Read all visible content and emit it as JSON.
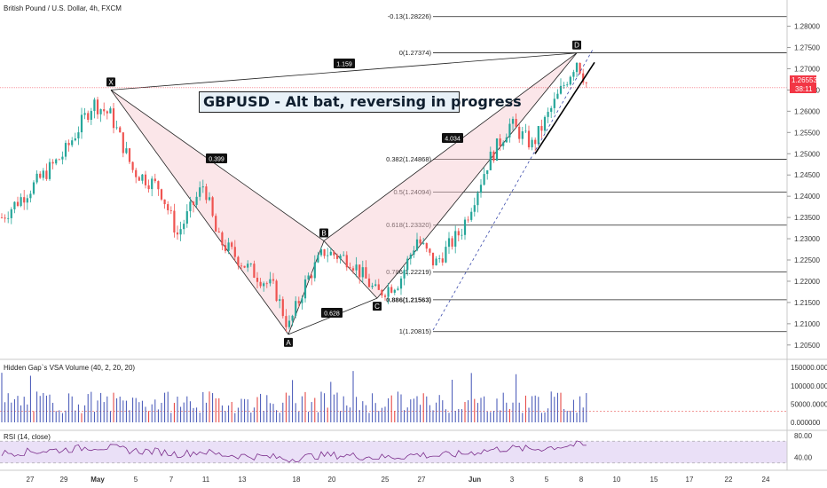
{
  "header": {
    "symbol": "British Pound / U.S. Dollar, 4h, FXCM"
  },
  "annotation_title": "GBPUSD - Alt bat, reversing in progress",
  "colors": {
    "up": "#26a69a",
    "down": "#ef5350",
    "pattern": "#f6c7cf",
    "price_line": "#f23645",
    "volume": "#3f51b5",
    "rsi": "#7b2d8b",
    "rsi_band": "#eae0f7"
  },
  "chart_data": [
    {
      "type": "candlestick",
      "title": "British Pound / U.S. Dollar, 4h, FXCM",
      "x_ticks": [
        "27",
        "29",
        "May",
        "5",
        "7",
        "11",
        "13",
        "18",
        "20",
        "25",
        "27",
        "Jun",
        "3",
        "5",
        "8",
        "10",
        "15",
        "17",
        "22",
        "24"
      ],
      "ylim": [
        1.2035,
        1.2845
      ],
      "y_ticks": [
        "1.28000",
        "1.27500",
        "1.27000",
        "1.26500",
        "1.26000",
        "1.25500",
        "1.25000",
        "1.24500",
        "1.24000",
        "1.23500",
        "1.23000",
        "1.22500",
        "1.22000",
        "1.21500",
        "1.21000",
        "1.20500"
      ],
      "current_price": {
        "value": "1.26553",
        "countdown": "38:11"
      },
      "pattern": {
        "name": "Alt bat",
        "points": [
          {
            "label": "X",
            "x": "Apr 30",
            "y": 1.265
          },
          {
            "label": "A",
            "x": "May 18",
            "y": 1.2075
          },
          {
            "label": "B",
            "x": "May 19",
            "y": 1.2295
          },
          {
            "label": "C",
            "x": "May 25",
            "y": 1.216
          },
          {
            "label": "D",
            "x": "Jun 8",
            "y": 1.2737
          }
        ],
        "ratios": [
          "1.159",
          "0.399",
          "0.628",
          "4.034"
        ]
      },
      "fib_levels": [
        {
          "label": "-0.13(1.28226)",
          "value": 1.28226
        },
        {
          "label": "0(1.27374)",
          "value": 1.27374
        },
        {
          "label": "0.382(1.24868)",
          "value": 1.24868
        },
        {
          "label": "0.5(1.24094)",
          "value": 1.24094
        },
        {
          "label": "0.618(1.23320)",
          "value": 1.2332
        },
        {
          "label": "0.786(1.22219)",
          "value": 1.22219
        },
        {
          "label": "0.886(1.21563)",
          "value": 1.21563
        },
        {
          "label": "1(1.20815)",
          "value": 1.20815
        }
      ]
    },
    {
      "type": "bar",
      "title": "Hidden Gap`s VSA Volume (40, 2, 20, 20)",
      "ylim": [
        0,
        160000
      ],
      "y_ticks": [
        "150000.000000",
        "100000.000000",
        "50000.000000",
        "0.000000"
      ]
    },
    {
      "type": "line",
      "title": "RSI (14, close)",
      "ylim": [
        20,
        85
      ],
      "y_ticks": [
        "80.00",
        "40.00"
      ],
      "band": [
        30,
        70
      ]
    }
  ]
}
